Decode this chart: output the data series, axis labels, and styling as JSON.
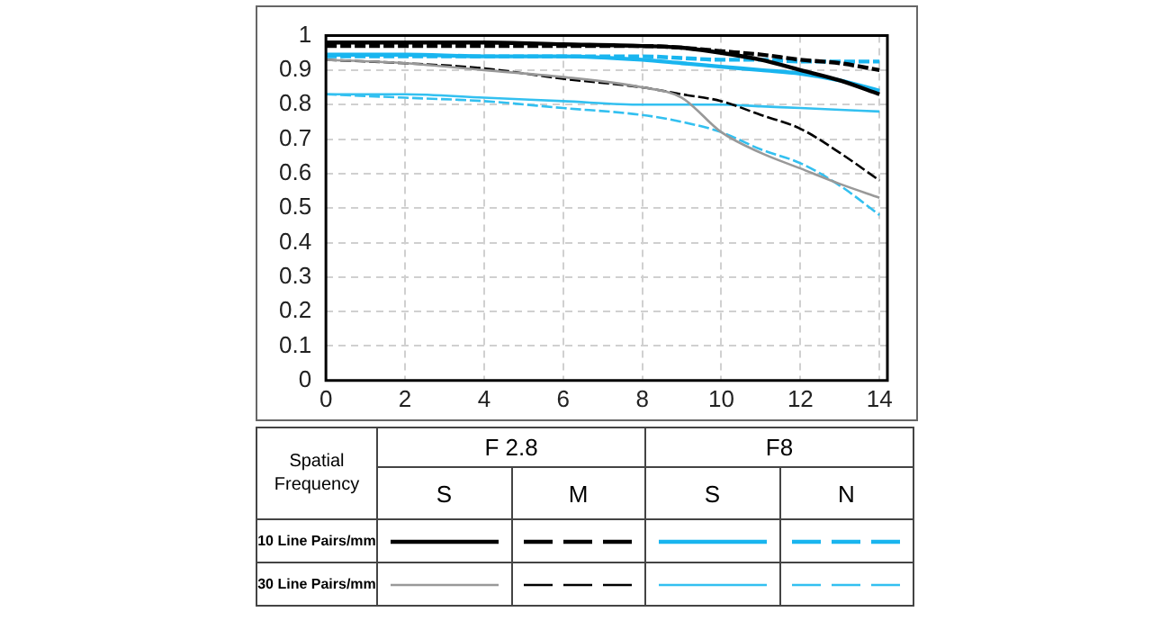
{
  "chart_data": {
    "type": "line",
    "x": [
      0,
      2,
      4,
      6,
      8,
      9,
      10,
      11,
      12,
      13,
      14
    ],
    "series": [
      {
        "color": "#000000",
        "line_style": "solid",
        "values": [
          0.98,
          0.98,
          0.98,
          0.975,
          0.97,
          0.965,
          0.95,
          0.93,
          0.9,
          0.87,
          0.83
        ]
      },
      {
        "color": "#000000",
        "line_style": "dashed",
        "values": [
          0.97,
          0.97,
          0.97,
          0.97,
          0.97,
          0.965,
          0.955,
          0.945,
          0.93,
          0.92,
          0.9
        ]
      },
      {
        "color": "#999999",
        "line_style": "solid",
        "values": [
          0.93,
          0.92,
          0.9,
          0.88,
          0.85,
          0.82,
          0.72,
          0.66,
          0.615,
          0.57,
          0.53
        ]
      },
      {
        "color": "#000000",
        "line_style": "dashed",
        "values": [
          0.93,
          0.92,
          0.905,
          0.875,
          0.85,
          0.83,
          0.81,
          0.77,
          0.73,
          0.66,
          0.58
        ]
      },
      {
        "color": "#19b5ef",
        "line_style": "solid",
        "values": [
          0.945,
          0.945,
          0.94,
          0.94,
          0.93,
          0.92,
          0.91,
          0.9,
          0.89,
          0.87,
          0.84
        ]
      },
      {
        "color": "#19b5ef",
        "line_style": "dashed",
        "values": [
          0.94,
          0.94,
          0.94,
          0.94,
          0.94,
          0.935,
          0.93,
          0.93,
          0.925,
          0.925,
          0.925
        ]
      },
      {
        "color": "#33c0f0",
        "line_style": "solid",
        "values": [
          0.83,
          0.83,
          0.82,
          0.81,
          0.8,
          0.8,
          0.8,
          0.795,
          0.79,
          0.785,
          0.78
        ]
      },
      {
        "color": "#33c0f0",
        "line_style": "dashed",
        "values": [
          0.83,
          0.82,
          0.81,
          0.79,
          0.77,
          0.75,
          0.72,
          0.67,
          0.63,
          0.565,
          0.48
        ]
      }
    ],
    "xlim": [
      0,
      14.2
    ],
    "xticks": [
      0,
      2,
      4,
      6,
      8,
      10,
      12,
      14
    ],
    "ylim": [
      0,
      1
    ],
    "yticks": [
      0,
      0.1,
      0.2,
      0.3,
      0.4,
      0.5,
      0.6,
      0.7,
      0.8,
      0.9,
      1
    ],
    "grid": true,
    "marker": "none",
    "annotations": [
      "Spatial Frequency",
      "F 2.8",
      "F8",
      "S",
      "M",
      "S",
      "N",
      "10 Line Pairs/mm",
      "30 Line Pairs/mm"
    ]
  }
}
